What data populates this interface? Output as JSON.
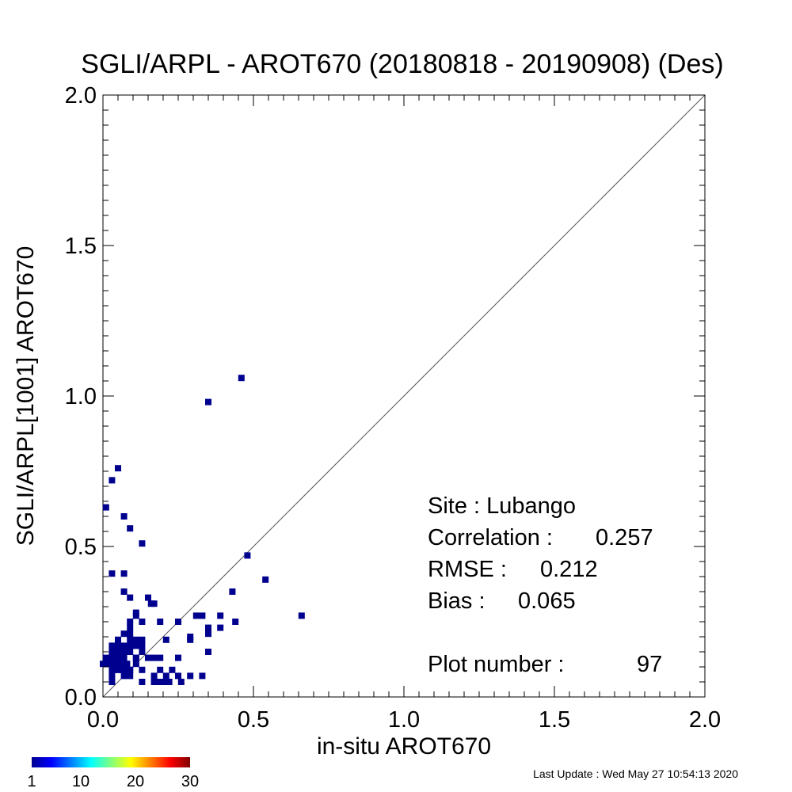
{
  "chart_data": {
    "type": "scatter",
    "title": "SGLI/ARPL - AROT670 (20180818 - 20190908) (Des)",
    "xlabel": "in-situ AROT670",
    "ylabel": "SGLI/ARPL[1001]    AROT670",
    "xlim": [
      0,
      2.0
    ],
    "ylim": [
      0,
      2.0
    ],
    "x_tick_labels": [
      "0.0",
      "0.5",
      "1.0",
      "1.5",
      "2.0"
    ],
    "y_tick_labels": [
      "0.0",
      "0.5",
      "1.0",
      "1.5",
      "2.0"
    ],
    "grid": false,
    "one_to_one_line": true,
    "point_color": "#00008f",
    "points": [
      [
        0.01,
        0.63
      ],
      [
        0.03,
        0.72
      ],
      [
        0.05,
        0.76
      ],
      [
        0.07,
        0.6
      ],
      [
        0.09,
        0.56
      ],
      [
        0.13,
        0.51
      ],
      [
        0.35,
        0.98
      ],
      [
        0.46,
        1.06
      ],
      [
        0.03,
        0.41
      ],
      [
        0.07,
        0.41
      ],
      [
        0.48,
        0.47
      ],
      [
        0.54,
        0.39
      ],
      [
        0.07,
        0.35
      ],
      [
        0.09,
        0.33
      ],
      [
        0.15,
        0.33
      ],
      [
        0.16,
        0.31
      ],
      [
        0.17,
        0.31
      ],
      [
        0.43,
        0.35
      ],
      [
        0.11,
        0.28
      ],
      [
        0.11,
        0.27
      ],
      [
        0.66,
        0.27
      ],
      [
        0.31,
        0.27
      ],
      [
        0.33,
        0.27
      ],
      [
        0.39,
        0.27
      ],
      [
        0.09,
        0.25
      ],
      [
        0.13,
        0.25
      ],
      [
        0.19,
        0.25
      ],
      [
        0.25,
        0.25
      ],
      [
        0.44,
        0.25
      ],
      [
        0.09,
        0.23
      ],
      [
        0.35,
        0.23
      ],
      [
        0.39,
        0.23
      ],
      [
        0.07,
        0.21
      ],
      [
        0.09,
        0.21
      ],
      [
        0.35,
        0.21
      ],
      [
        0.05,
        0.19
      ],
      [
        0.09,
        0.19
      ],
      [
        0.11,
        0.19
      ],
      [
        0.21,
        0.19
      ],
      [
        0.29,
        0.19
      ],
      [
        0.03,
        0.17
      ],
      [
        0.05,
        0.17
      ],
      [
        0.07,
        0.17
      ],
      [
        0.11,
        0.17
      ],
      [
        0.13,
        0.17
      ],
      [
        0.29,
        0.2
      ],
      [
        0.03,
        0.15
      ],
      [
        0.05,
        0.15
      ],
      [
        0.07,
        0.15
      ],
      [
        0.09,
        0.15
      ],
      [
        0.13,
        0.15
      ],
      [
        0.35,
        0.15
      ],
      [
        0.01,
        0.13
      ],
      [
        0.03,
        0.13
      ],
      [
        0.05,
        0.13
      ],
      [
        0.07,
        0.13
      ],
      [
        0.11,
        0.13
      ],
      [
        0.15,
        0.13
      ],
      [
        0.17,
        0.13
      ],
      [
        0.19,
        0.13
      ],
      [
        0.25,
        0.13
      ],
      [
        0.0,
        0.11
      ],
      [
        0.01,
        0.11
      ],
      [
        0.02,
        0.11
      ],
      [
        0.03,
        0.11
      ],
      [
        0.04,
        0.11
      ],
      [
        0.05,
        0.11
      ],
      [
        0.07,
        0.11
      ],
      [
        0.08,
        0.11
      ],
      [
        0.11,
        0.11
      ],
      [
        0.03,
        0.09
      ],
      [
        0.05,
        0.09
      ],
      [
        0.07,
        0.09
      ],
      [
        0.09,
        0.09
      ],
      [
        0.13,
        0.09
      ],
      [
        0.19,
        0.09
      ],
      [
        0.23,
        0.09
      ],
      [
        0.03,
        0.07
      ],
      [
        0.07,
        0.07
      ],
      [
        0.09,
        0.07
      ],
      [
        0.17,
        0.07
      ],
      [
        0.21,
        0.07
      ],
      [
        0.25,
        0.07
      ],
      [
        0.29,
        0.07
      ],
      [
        0.33,
        0.07
      ],
      [
        0.03,
        0.05
      ],
      [
        0.13,
        0.05
      ],
      [
        0.17,
        0.05
      ],
      [
        0.19,
        0.05
      ],
      [
        0.21,
        0.05
      ],
      [
        0.22,
        0.05
      ],
      [
        0.26,
        0.05
      ],
      [
        0.09,
        0.09
      ],
      [
        0.05,
        0.09
      ],
      [
        0.11,
        0.13
      ],
      [
        0.13,
        0.19
      ],
      [
        0.09,
        0.17
      ]
    ],
    "stats": {
      "site_label": "Site : Lubango",
      "corr_label": "Correlation :",
      "corr_value": "0.257",
      "rmse_label": "RMSE :",
      "rmse_value": "0.212",
      "bias_label": "Bias :",
      "bias_value": "0.065",
      "plotnum_label": "Plot number :",
      "plotnum_value": "97"
    },
    "colorbar": {
      "tick_labels": [
        "1",
        "10",
        "20",
        "30"
      ],
      "range": [
        1,
        30
      ],
      "colors": [
        "#00008f",
        "#0000ff",
        "#0080ff",
        "#00ffff",
        "#80ff80",
        "#ffff00",
        "#ff8000",
        "#ff0000",
        "#800000"
      ]
    }
  },
  "footer": {
    "last_update": "Last Update : Wed May 27 10:54:13 2020"
  }
}
